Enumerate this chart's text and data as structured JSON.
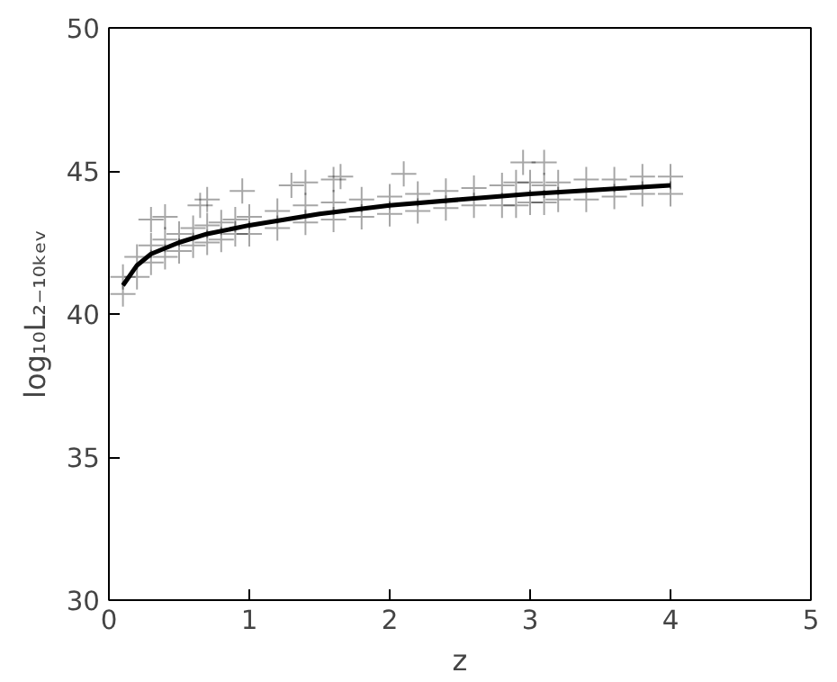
{
  "chart_data": {
    "type": "scatter",
    "xlabel": "z",
    "ylabel": "log₁₀L₂₋₁₀ₖₑᵥ",
    "xlim": [
      0,
      5
    ],
    "ylim": [
      30,
      50
    ],
    "xticks": [
      0,
      1,
      2,
      3,
      4,
      5
    ],
    "yticks": [
      30,
      35,
      40,
      45,
      50
    ],
    "grid": false,
    "marker": "cross",
    "series": [
      {
        "color": "#000000",
        "x": [
          0.1,
          0.1,
          0.2,
          0.2,
          0.3,
          0.3,
          0.4,
          0.4,
          0.5,
          0.5,
          0.6,
          0.6,
          0.7,
          0.7,
          0.8,
          0.8,
          0.9,
          0.9,
          1.0,
          1.0,
          1.2,
          1.2,
          1.4,
          1.4,
          1.6,
          1.6,
          1.8,
          1.8,
          2.0,
          2.0,
          2.2,
          2.2,
          2.4,
          2.4,
          2.6,
          2.6,
          2.8,
          2.8,
          2.9,
          2.9,
          3.0,
          3.0,
          3.1,
          3.1,
          3.2,
          3.2,
          3.4,
          3.4,
          3.6,
          3.6,
          3.8,
          3.8,
          4.0,
          4.0,
          0.3,
          0.4,
          0.65,
          0.7,
          0.95,
          1.3,
          1.4,
          1.6,
          1.65,
          2.1,
          2.95,
          3.1
        ],
        "values": [
          41.3,
          40.7,
          42.0,
          41.3,
          42.4,
          41.8,
          42.6,
          42.0,
          42.8,
          42.2,
          43.0,
          42.4,
          43.1,
          42.5,
          43.2,
          42.6,
          43.3,
          42.8,
          43.4,
          42.8,
          43.6,
          43.0,
          43.8,
          43.2,
          43.9,
          43.3,
          44.0,
          43.4,
          44.1,
          43.5,
          44.2,
          43.6,
          44.3,
          43.7,
          44.4,
          43.8,
          44.5,
          43.8,
          44.6,
          43.8,
          44.6,
          43.9,
          44.5,
          43.9,
          44.6,
          44.0,
          44.7,
          44.0,
          44.7,
          44.1,
          44.8,
          44.2,
          44.8,
          44.2,
          43.3,
          43.4,
          43.8,
          44.0,
          44.3,
          44.5,
          44.6,
          44.7,
          44.8,
          44.9,
          45.3,
          45.3
        ]
      },
      {
        "type": "line",
        "color": "#000000",
        "marker": "none",
        "x": [
          0.1,
          0.2,
          0.3,
          0.5,
          0.7,
          1.0,
          1.5,
          2.0,
          2.5,
          3.0,
          3.5,
          4.0
        ],
        "values": [
          41.0,
          41.7,
          42.1,
          42.5,
          42.8,
          43.1,
          43.5,
          43.8,
          44.0,
          44.2,
          44.35,
          44.5
        ]
      }
    ]
  }
}
